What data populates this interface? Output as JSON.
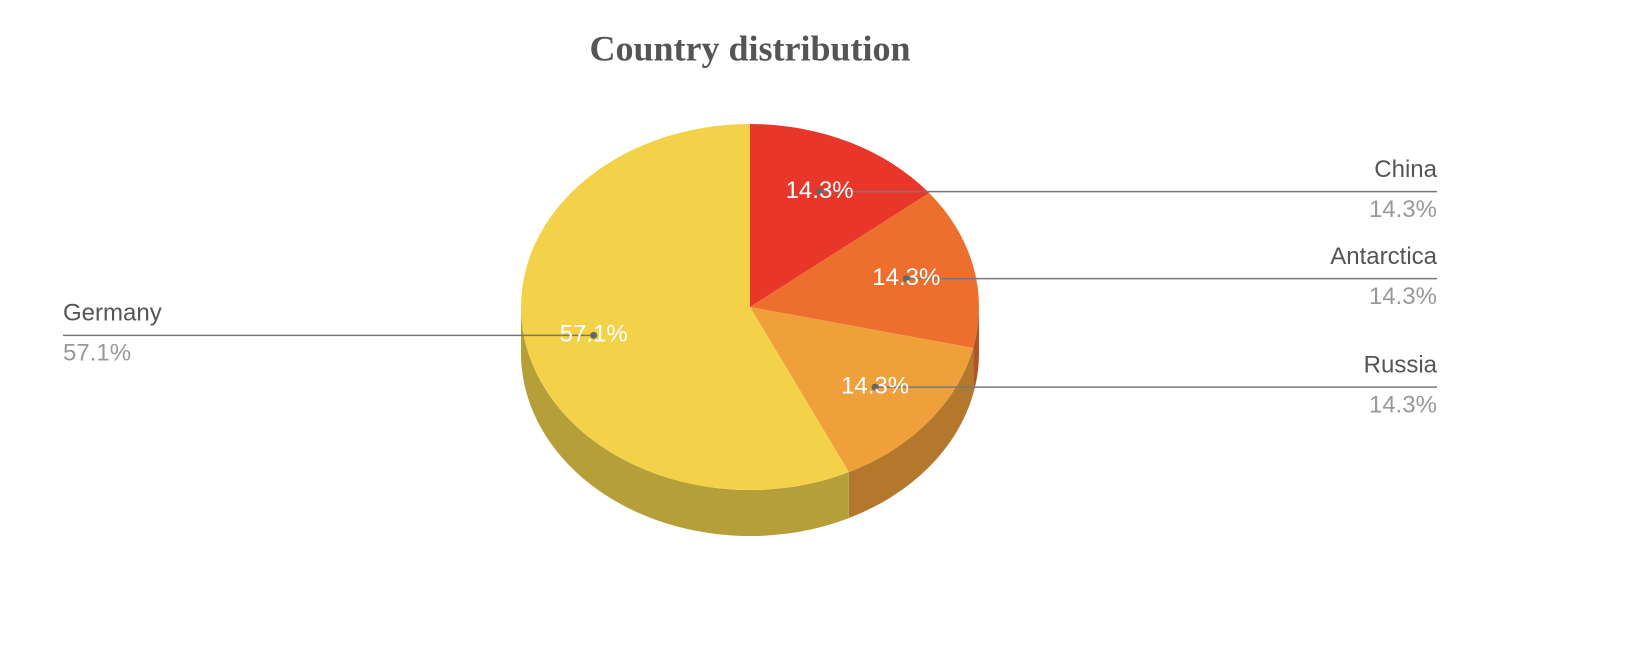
{
  "chart_data": {
    "type": "pie",
    "title": "Country distribution",
    "categories": [
      "China",
      "Antarctica",
      "Russia",
      "Germany"
    ],
    "values": [
      14.3,
      14.3,
      14.3,
      57.1
    ],
    "value_labels": [
      "14.3%",
      "14.3%",
      "14.3%",
      "57.1%"
    ],
    "colors": [
      "#e8372a",
      "#ec6f2e",
      "#f0a03b",
      "#f3d24a"
    ],
    "three_d": true
  }
}
